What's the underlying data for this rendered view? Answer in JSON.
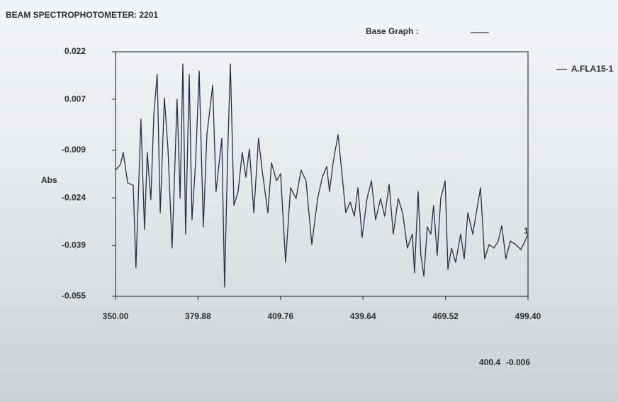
{
  "app_title": "BEAM SPECTROPHOTOMETER: 2201",
  "base_graph_label": "Base Graph :",
  "readout": {
    "x": "400.4",
    "y": "-0.006"
  },
  "chart_data": {
    "type": "line",
    "y_label": "Abs",
    "annotation": "1",
    "xlim": [
      350,
      499.4
    ],
    "xticks": [
      {
        "value": 350,
        "label": "350.00"
      },
      379.88,
      409.76,
      439.64,
      469.52,
      {
        "value": 499.4,
        "label": "499.40"
      }
    ],
    "ylim": [
      -0.055,
      0.022
    ],
    "yticks": [
      0.022,
      0.007,
      -0.009,
      -0.024,
      -0.039,
      -0.055
    ],
    "grid": false,
    "legend": "right",
    "x": [
      350.0,
      351.8,
      352.8,
      354.4,
      356.4,
      357.4,
      359.2,
      360.5,
      361.5,
      362.8,
      363.9,
      365.1,
      366.2,
      367.7,
      369.0,
      370.5,
      372.3,
      373.4,
      374.4,
      375.4,
      376.7,
      377.7,
      379.0,
      380.3,
      381.8,
      383.1,
      385.2,
      386.4,
      388.5,
      389.5,
      390.6,
      391.6,
      392.9,
      394.4,
      395.9,
      397.2,
      398.5,
      400.1,
      401.8,
      403.1,
      405.2,
      406.5,
      408.3,
      409.8,
      411.6,
      413.4,
      415.4,
      417.2,
      419.0,
      421.1,
      423.2,
      424.9,
      426.5,
      427.5,
      428.8,
      430.6,
      431.9,
      433.4,
      435.0,
      436.5,
      437.8,
      439.3,
      441.1,
      442.7,
      444.2,
      446.0,
      447.5,
      449.1,
      450.6,
      452.4,
      454.0,
      455.7,
      457.5,
      458.3,
      459.6,
      460.6,
      461.7,
      462.9,
      464.2,
      465.2,
      466.5,
      467.8,
      469.4,
      470.4,
      471.7,
      473.2,
      475.0,
      476.3,
      477.6,
      479.4,
      480.9,
      482.2,
      483.7,
      485.3,
      487.1,
      488.6,
      489.9,
      491.4,
      493.0,
      495.0,
      496.8,
      498.1,
      499.4
    ],
    "series": [
      {
        "name": "A.FLA15-1",
        "color": "#2a2c48",
        "values": [
          -0.0153,
          -0.0135,
          -0.0097,
          -0.0193,
          -0.02,
          -0.046,
          0.0008,
          -0.034,
          -0.0097,
          -0.0246,
          0.0026,
          0.0149,
          -0.0287,
          0.0075,
          -0.0086,
          -0.0398,
          0.0071,
          -0.0242,
          0.0182,
          -0.0354,
          0.0149,
          -0.0309,
          -0.013,
          0.016,
          -0.0331,
          -0.0041,
          0.0115,
          -0.022,
          -0.0052,
          -0.0521,
          -0.0108,
          0.0182,
          -0.0264,
          -0.022,
          -0.0097,
          -0.0175,
          -0.0086,
          -0.0287,
          -0.0052,
          -0.0153,
          -0.0287,
          -0.013,
          -0.0186,
          -0.0164,
          -0.0443,
          -0.0208,
          -0.0242,
          -0.0153,
          -0.0186,
          -0.0387,
          -0.0242,
          -0.0175,
          -0.0141,
          -0.022,
          -0.013,
          -0.0041,
          -0.0153,
          -0.0287,
          -0.0253,
          -0.0298,
          -0.0208,
          -0.0365,
          -0.0242,
          -0.0186,
          -0.0309,
          -0.0242,
          -0.0298,
          -0.0197,
          -0.0354,
          -0.0242,
          -0.0287,
          -0.0398,
          -0.0354,
          -0.0476,
          -0.022,
          -0.0421,
          -0.0487,
          -0.0331,
          -0.0354,
          -0.0264,
          -0.0421,
          -0.0242,
          -0.0186,
          -0.0465,
          -0.0398,
          -0.0443,
          -0.0354,
          -0.0432,
          -0.0287,
          -0.0354,
          -0.0275,
          -0.0208,
          -0.0432,
          -0.0387,
          -0.0398,
          -0.0376,
          -0.0327,
          -0.0432,
          -0.0376,
          -0.0387,
          -0.0403,
          -0.038,
          -0.0354
        ]
      }
    ]
  }
}
